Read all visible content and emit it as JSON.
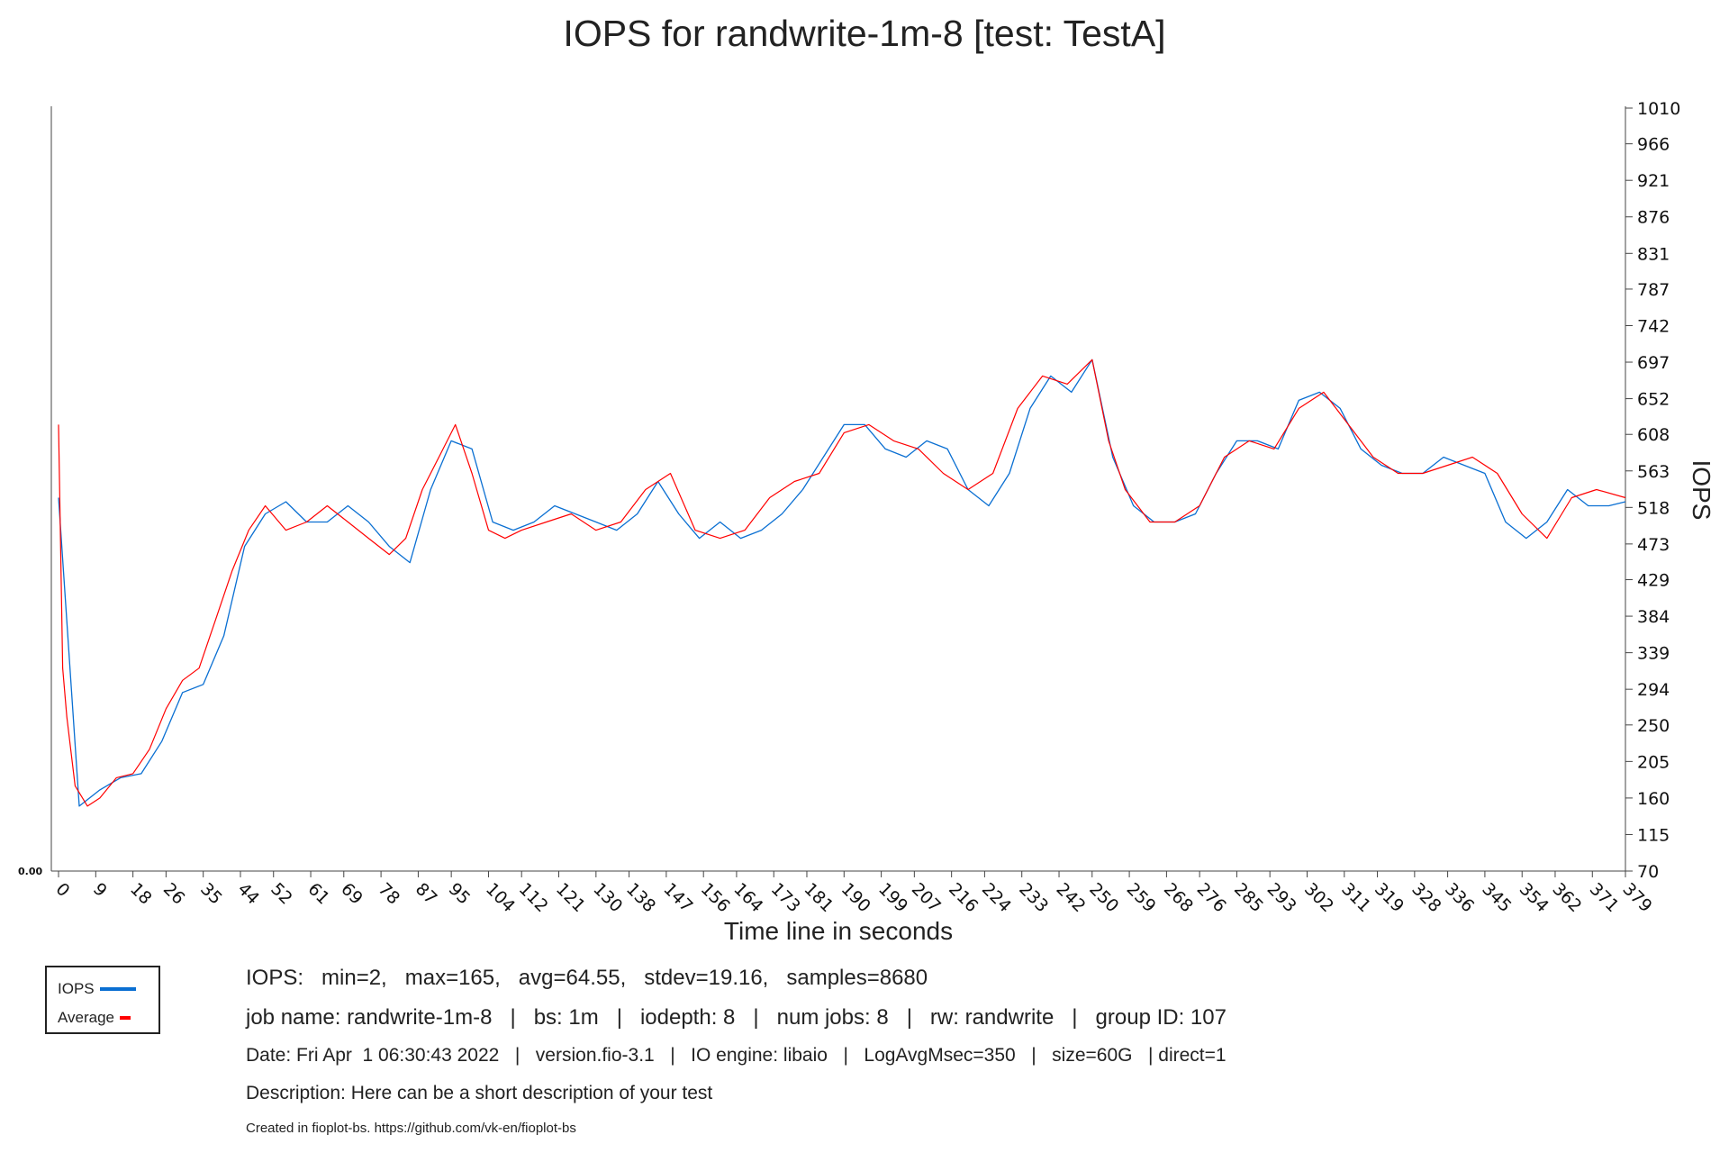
{
  "chart_data": {
    "type": "line",
    "title": "IOPS for randwrite-1m-8  [test: TestA]",
    "xlabel": "Time line in seconds",
    "ylabel": "IOPS",
    "xlim": [
      0,
      379
    ],
    "ylim": [
      70,
      1010
    ],
    "x_ticks": [
      0,
      9,
      18,
      26,
      35,
      44,
      52,
      61,
      69,
      78,
      87,
      95,
      104,
      112,
      121,
      130,
      138,
      147,
      156,
      164,
      173,
      181,
      190,
      199,
      207,
      216,
      224,
      233,
      242,
      250,
      259,
      268,
      276,
      285,
      293,
      302,
      311,
      319,
      328,
      336,
      345,
      354,
      362,
      371,
      379
    ],
    "y_ticks": [
      70,
      115,
      160,
      205,
      250,
      294,
      339,
      384,
      429,
      473,
      518,
      563,
      608,
      652,
      697,
      742,
      787,
      831,
      876,
      921,
      966,
      1010
    ],
    "left_axis_label": "0.00",
    "grid": false,
    "legend_position": "bottom-left",
    "series": [
      {
        "name": "IOPS",
        "color": "#0a6fd2",
        "x": [
          0,
          5,
          10,
          15,
          20,
          25,
          30,
          35,
          40,
          45,
          50,
          55,
          60,
          65,
          70,
          75,
          80,
          85,
          90,
          95,
          100,
          105,
          110,
          115,
          120,
          125,
          130,
          135,
          140,
          145,
          150,
          155,
          160,
          165,
          170,
          175,
          180,
          185,
          190,
          195,
          200,
          205,
          210,
          215,
          220,
          225,
          230,
          235,
          240,
          245,
          250,
          255,
          260,
          265,
          270,
          275,
          280,
          285,
          290,
          295,
          300,
          305,
          310,
          315,
          320,
          325,
          330,
          335,
          340,
          345,
          350,
          355,
          360,
          365,
          370,
          375,
          379
        ],
        "values": [
          530,
          150,
          170,
          185,
          190,
          230,
          290,
          300,
          360,
          470,
          510,
          525,
          500,
          500,
          520,
          500,
          470,
          450,
          540,
          600,
          590,
          500,
          490,
          500,
          520,
          510,
          500,
          490,
          510,
          550,
          510,
          480,
          500,
          480,
          490,
          510,
          540,
          580,
          620,
          620,
          590,
          580,
          600,
          590,
          540,
          520,
          560,
          640,
          680,
          660,
          700,
          580,
          520,
          500,
          500,
          510,
          560,
          600,
          600,
          590,
          650,
          660,
          640,
          590,
          570,
          560,
          560,
          580,
          570,
          560,
          500,
          480,
          500,
          540,
          520,
          520,
          525
        ]
      },
      {
        "name": "Average",
        "color": "#ff0000",
        "x": [
          0,
          1,
          2,
          4,
          7,
          10,
          14,
          18,
          22,
          26,
          30,
          34,
          38,
          42,
          46,
          50,
          55,
          60,
          65,
          70,
          75,
          80,
          84,
          88,
          92,
          96,
          100,
          104,
          108,
          112,
          118,
          124,
          130,
          136,
          142,
          148,
          154,
          160,
          166,
          172,
          178,
          184,
          190,
          196,
          202,
          208,
          214,
          220,
          226,
          232,
          238,
          244,
          250,
          254,
          258,
          264,
          270,
          276,
          282,
          288,
          294,
          300,
          306,
          312,
          318,
          324,
          330,
          336,
          342,
          348,
          354,
          360,
          366,
          372,
          379
        ],
        "values": [
          620,
          320,
          260,
          175,
          150,
          160,
          185,
          190,
          220,
          270,
          305,
          320,
          380,
          440,
          490,
          520,
          490,
          500,
          520,
          500,
          480,
          460,
          480,
          540,
          580,
          620,
          560,
          490,
          480,
          490,
          500,
          510,
          490,
          500,
          540,
          560,
          490,
          480,
          490,
          530,
          550,
          560,
          610,
          620,
          600,
          590,
          560,
          540,
          560,
          640,
          680,
          670,
          700,
          600,
          540,
          500,
          500,
          520,
          580,
          600,
          590,
          640,
          660,
          620,
          580,
          560,
          560,
          570,
          580,
          560,
          510,
          480,
          530,
          540,
          530
        ]
      }
    ]
  },
  "legend": [
    {
      "label": "IOPS",
      "color": "#0a6fd2"
    },
    {
      "label": "Average",
      "color": "#ff0000"
    }
  ],
  "stats": {
    "line1": "IOPS:   min=2,   max=165,   avg=64.55,   stdev=19.16,   samples=8680",
    "line2": "job name: randwrite-1m-8   |   bs: 1m   |   iodepth: 8   |   num jobs: 8   |   rw: randwrite   |   group ID: 107",
    "line3": "Date: Fri Apr  1 06:30:43 2022   |   version.fio-3.1   |   IO engine: libaio   |   LogAvgMsec=350   |   size=60G   | direct=1",
    "line4": "Description: Here can be a short description of your test",
    "line5": "Created in fioplot-bs. https://github.com/vk-en/fioplot-bs"
  }
}
